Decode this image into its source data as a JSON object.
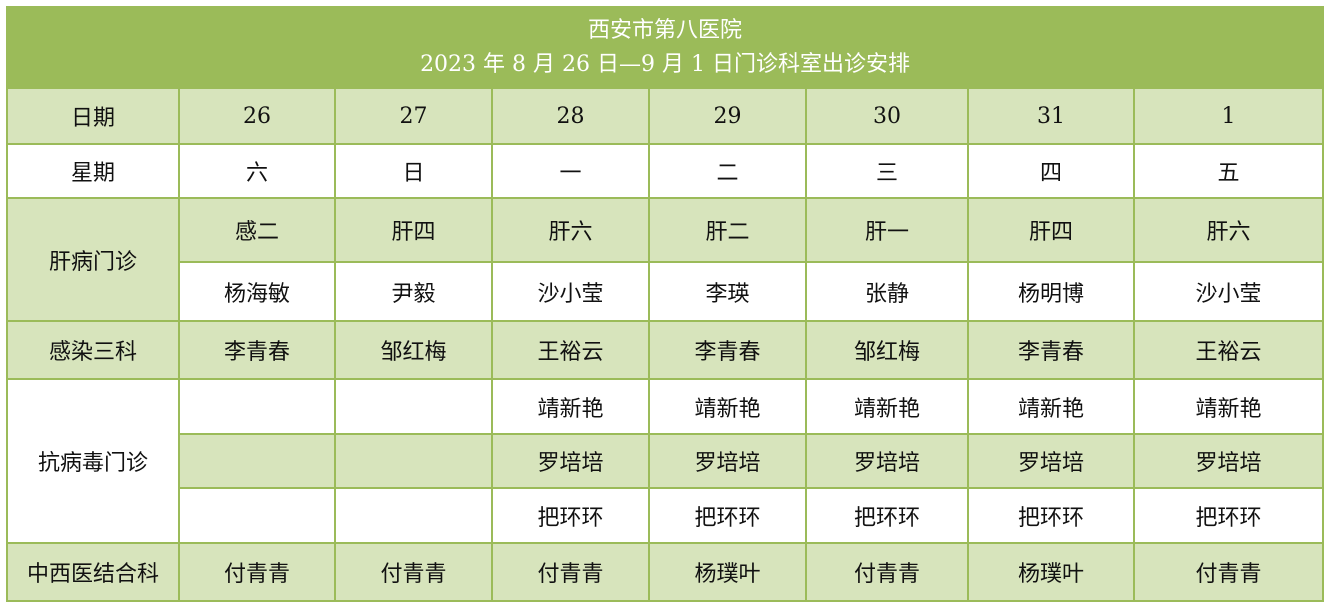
{
  "title": {
    "line1": "西安市第八医院",
    "line2": "2023 年 8 月 26 日—9 月 1 日门诊科室出诊安排"
  },
  "row_labels": {
    "date": "日期",
    "weekday": "星期",
    "liver": "肝病门诊",
    "infection3": "感染三科",
    "antiviral": "抗病毒门诊",
    "integrative": "中西医结合科"
  },
  "dates": [
    "26",
    "27",
    "28",
    "29",
    "30",
    "31",
    "1"
  ],
  "weekdays": [
    "六",
    "日",
    "一",
    "二",
    "三",
    "四",
    "五"
  ],
  "liver_rooms": [
    "感二",
    "肝四",
    "肝六",
    "肝二",
    "肝一",
    "肝四",
    "肝六"
  ],
  "liver_doctors": [
    "杨海敏",
    "尹毅",
    "沙小莹",
    "李瑛",
    "张静",
    "杨明博",
    "沙小莹"
  ],
  "infection3": [
    "李青春",
    "邹红梅",
    "王裕云",
    "李青春",
    "邹红梅",
    "李青春",
    "王裕云"
  ],
  "antiviral_1": [
    "",
    "",
    "靖新艳",
    "靖新艳",
    "靖新艳",
    "靖新艳",
    "靖新艳"
  ],
  "antiviral_2": [
    "",
    "",
    "罗培培",
    "罗培培",
    "罗培培",
    "罗培培",
    "罗培培"
  ],
  "antiviral_3": [
    "",
    "",
    "把环环",
    "把环环",
    "把环环",
    "把环环",
    "把环环"
  ],
  "integrative": [
    "付青青",
    "付青青",
    "付青青",
    "杨璞叶",
    "付青青",
    "杨璞叶",
    "付青青"
  ],
  "colors": {
    "header_green": "#9bbb59",
    "row_light_green": "#d7e4bc",
    "border": "#9bbb59",
    "title_text": "#ffffff"
  }
}
